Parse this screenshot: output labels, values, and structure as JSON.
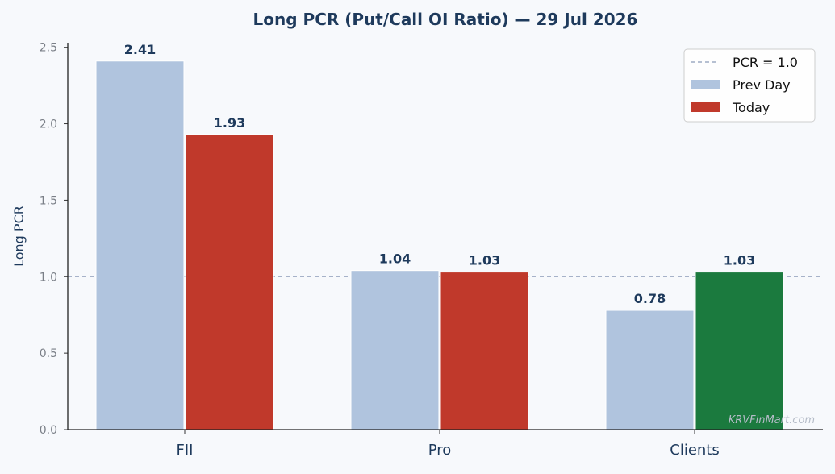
{
  "chart_data": {
    "type": "bar",
    "title": "Long PCR (Put/Call OI Ratio) — 29 Jul 2026",
    "ylabel": "Long PCR",
    "xlabel": "",
    "categories": [
      "FII",
      "Pro",
      "Clients"
    ],
    "series": [
      {
        "name": "Prev Day",
        "values": [
          2.41,
          1.04,
          0.78
        ],
        "labels": [
          "2.41",
          "1.04",
          "0.78"
        ],
        "color": "#b0c4de"
      },
      {
        "name": "Today",
        "values": [
          1.93,
          1.03,
          1.03
        ],
        "labels": [
          "1.93",
          "1.03",
          "1.03"
        ],
        "colors": [
          "#c0392b",
          "#c0392b",
          "#1b7a3e"
        ]
      }
    ],
    "yticks": [
      "0.0",
      "0.5",
      "1.0",
      "1.5",
      "2.0",
      "2.5"
    ],
    "ylim": [
      0,
      2.53
    ],
    "reference_line": {
      "value": 1.0,
      "label": "PCR = 1.0",
      "color": "#8a9bb8"
    },
    "legend": {
      "position": "top-right",
      "entries": [
        {
          "label": "PCR = 1.0",
          "kind": "dashed-line",
          "color": "#8a9bb8"
        },
        {
          "label": "Prev Day",
          "kind": "patch",
          "color": "#b0c4de"
        },
        {
          "label": "Today",
          "kind": "patch",
          "color": "#c0392b"
        }
      ]
    },
    "grid": false,
    "watermark": "KRVFinMart.com"
  }
}
